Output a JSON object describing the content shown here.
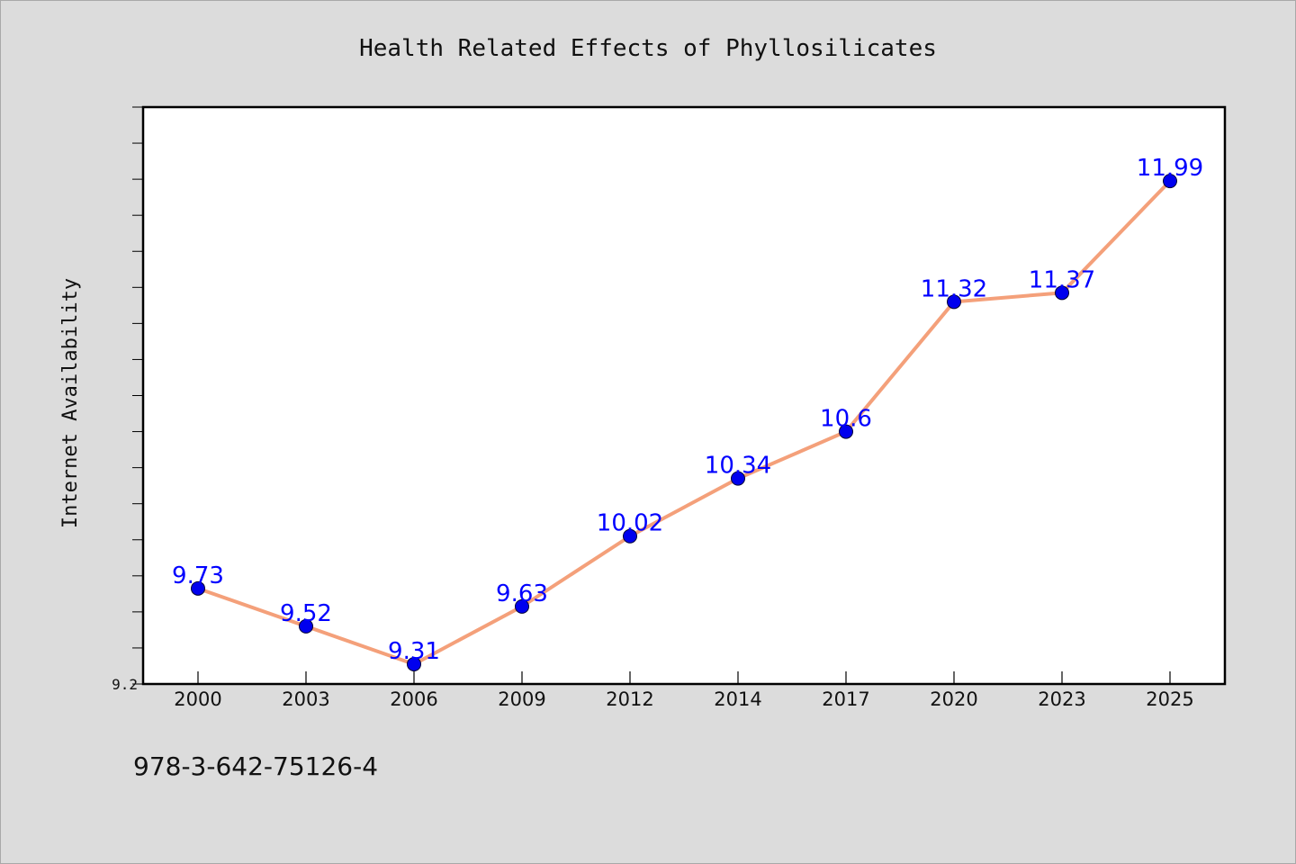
{
  "footer": {
    "code": "978-3-642-75126-4"
  },
  "colors": {
    "background": "#dcdcdc",
    "plot_background": "#ffffff",
    "line": "#f4a07a",
    "marker": "#0000ee",
    "label": "#0000ff"
  },
  "chart_data": {
    "type": "line",
    "title": "Health Related Effects of Phyllosilicates",
    "xlabel": "",
    "ylabel": "Internet Availability",
    "categories": [
      "2000",
      "2003",
      "2006",
      "2009",
      "2012",
      "2014",
      "2017",
      "2020",
      "2023",
      "2025"
    ],
    "series": [
      {
        "values": [
          9.73,
          9.52,
          9.31,
          9.63,
          10.02,
          10.34,
          10.6,
          11.32,
          11.37,
          11.99
        ]
      }
    ],
    "data_labels": [
      "9.73",
      "9.52",
      "9.31",
      "9.63",
      "10.02",
      "10.34",
      "10.6",
      "11.32",
      "11.37",
      "11.99"
    ],
    "y_tick_labels": [
      "9.2"
    ],
    "ylim": [
      9.2,
      12.4
    ],
    "grid": false,
    "legend": "none"
  }
}
